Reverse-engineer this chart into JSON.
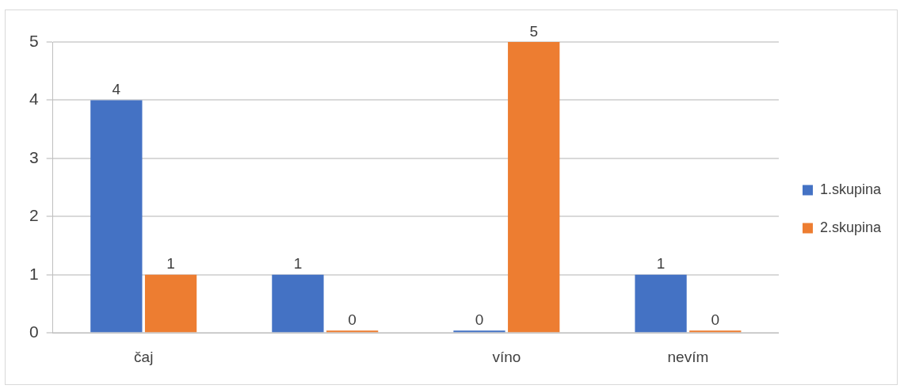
{
  "chart_data": {
    "type": "bar",
    "categories": [
      "čaj",
      null,
      "víno",
      "nevím"
    ],
    "series": [
      {
        "name": "1.skupina",
        "color": "#4472c4",
        "values": [
          4,
          1,
          0,
          1
        ]
      },
      {
        "name": "2.skupina",
        "color": "#ed7d31",
        "values": [
          1,
          0,
          5,
          0
        ]
      }
    ],
    "ylim": [
      0,
      5
    ],
    "yticks": [
      0,
      1,
      2,
      3,
      4,
      5
    ],
    "grid": "y",
    "legend": "right",
    "data_labels": true
  }
}
